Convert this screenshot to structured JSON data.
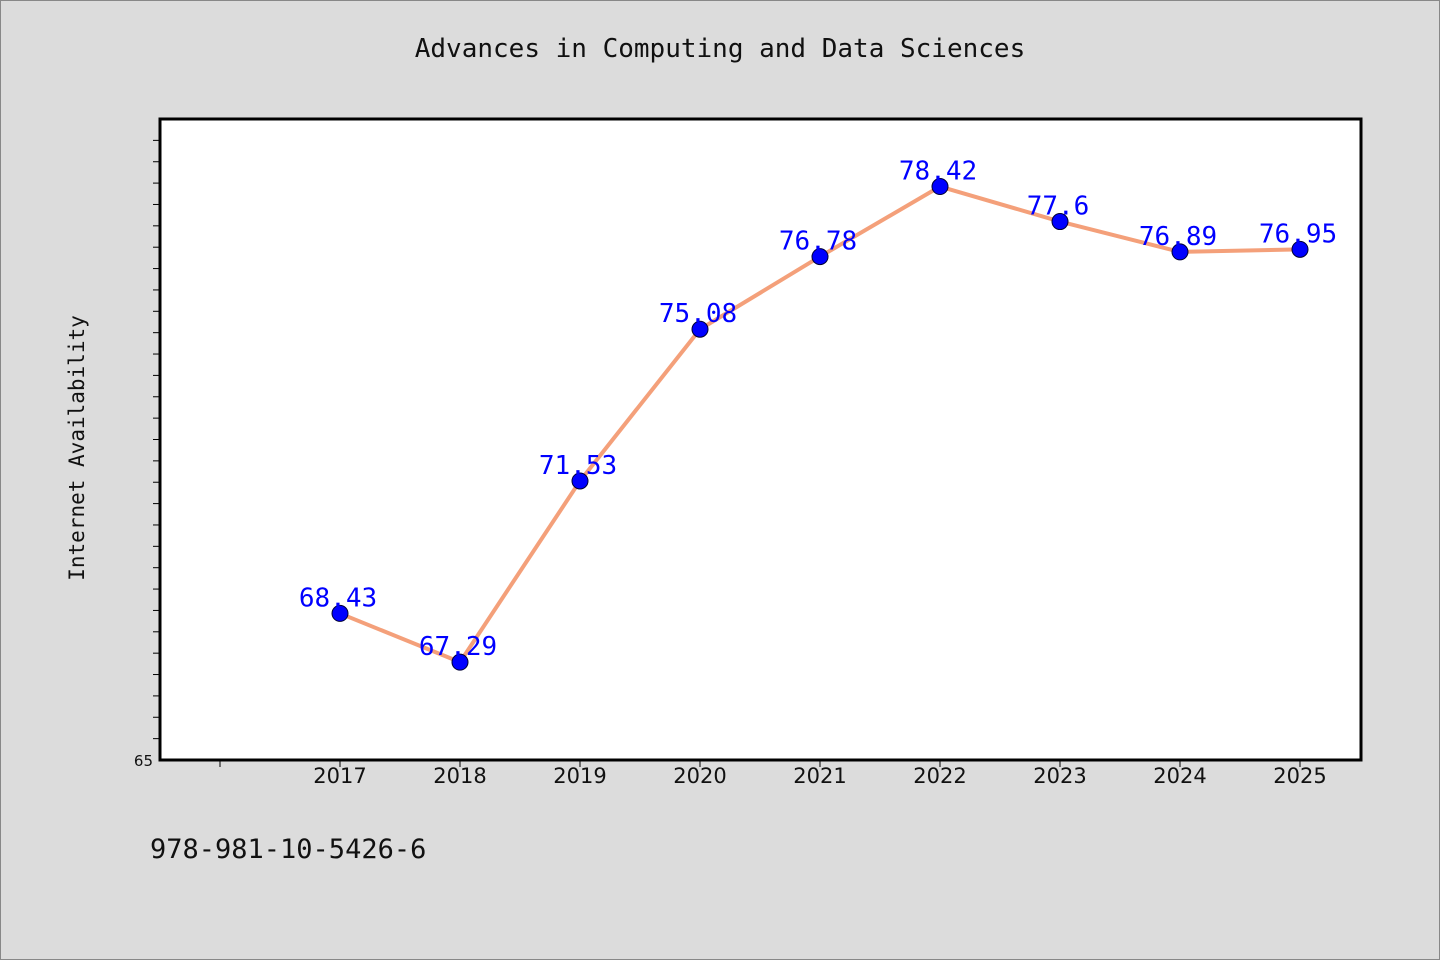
{
  "chart_data": {
    "type": "line",
    "title": "Advances in Computing and Data Sciences",
    "xlabel": "",
    "ylabel": "Internet Availability",
    "categories": [
      "2017",
      "2018",
      "2019",
      "2020",
      "2021",
      "2022",
      "2023",
      "2024",
      "2025"
    ],
    "series": [
      {
        "values": [
          68.43,
          67.29,
          71.53,
          75.08,
          76.78,
          78.42,
          77.6,
          76.89,
          76.95
        ],
        "color": "#f4a07a",
        "marker_color": "#0000ff"
      }
    ],
    "data_labels": [
      "68.43",
      "67.29",
      "71.53",
      "75.08",
      "76.78",
      "78.42",
      "77.6",
      "76.89",
      "76.95"
    ],
    "ylim": [
      65,
      80
    ],
    "y_tick_labels": [
      "65"
    ],
    "grid": false,
    "label_color": "#0000ff"
  },
  "footer": {
    "isbn": "978-981-10-5426-6"
  }
}
